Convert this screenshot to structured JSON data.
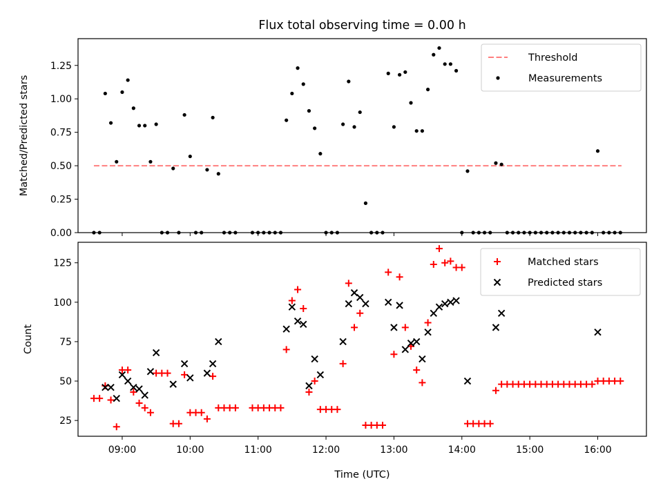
{
  "figure_title": "Flux total observing time = 0.00 h",
  "chart_data": [
    {
      "type": "scatter",
      "title": "Flux total observing time = 0.00 h",
      "xlabel": "",
      "ylabel": "Matched/Predicted stars",
      "xlim": [
        "08:21",
        "16:43"
      ],
      "ylim": [
        0,
        1.45
      ],
      "grid": false,
      "legend_position": "top-right",
      "y_ticks": [
        0,
        0.25,
        0.5,
        0.75,
        1.0,
        1.25
      ],
      "y_tick_labels": [
        "0.00",
        "0.25",
        "0.50",
        "0.75",
        "1.00",
        "1.25"
      ],
      "x_ticks": [
        "09:00",
        "10:00",
        "11:00",
        "12:00",
        "13:00",
        "14:00",
        "15:00",
        "16:00"
      ],
      "series": [
        {
          "name": "Threshold",
          "kind": "line",
          "style": "dashed",
          "color": "#ff7f7f",
          "points": [
            [
              "08:35",
              0.5
            ],
            [
              "16:21",
              0.5
            ]
          ]
        },
        {
          "name": "Measurements",
          "kind": "scatter",
          "marker": "dot",
          "color": "#000000",
          "points": [
            [
              "08:35",
              0.0
            ],
            [
              "08:40",
              0.0
            ],
            [
              "08:45",
              1.04
            ],
            [
              "08:50",
              0.82
            ],
            [
              "08:55",
              0.53
            ],
            [
              "09:00",
              1.05
            ],
            [
              "09:05",
              1.14
            ],
            [
              "09:10",
              0.93
            ],
            [
              "09:15",
              0.8
            ],
            [
              "09:20",
              0.8
            ],
            [
              "09:25",
              0.53
            ],
            [
              "09:30",
              0.81
            ],
            [
              "09:35",
              0.0
            ],
            [
              "09:40",
              0.0
            ],
            [
              "09:45",
              0.48
            ],
            [
              "09:50",
              0.0
            ],
            [
              "09:55",
              0.88
            ],
            [
              "10:00",
              0.57
            ],
            [
              "10:05",
              0.0
            ],
            [
              "10:10",
              0.0
            ],
            [
              "10:15",
              0.47
            ],
            [
              "10:20",
              0.86
            ],
            [
              "10:25",
              0.44
            ],
            [
              "10:30",
              0.0
            ],
            [
              "10:35",
              0.0
            ],
            [
              "10:40",
              0.0
            ],
            [
              "10:55",
              0.0
            ],
            [
              "11:00",
              0.0
            ],
            [
              "11:05",
              0.0
            ],
            [
              "11:10",
              0.0
            ],
            [
              "11:15",
              0.0
            ],
            [
              "11:20",
              0.0
            ],
            [
              "11:25",
              0.84
            ],
            [
              "11:30",
              1.04
            ],
            [
              "11:35",
              1.23
            ],
            [
              "11:40",
              1.11
            ],
            [
              "11:45",
              0.91
            ],
            [
              "11:50",
              0.78
            ],
            [
              "11:55",
              0.59
            ],
            [
              "12:00",
              0.0
            ],
            [
              "12:05",
              0.0
            ],
            [
              "12:10",
              0.0
            ],
            [
              "12:15",
              0.81
            ],
            [
              "12:20",
              1.13
            ],
            [
              "12:25",
              0.79
            ],
            [
              "12:30",
              0.9
            ],
            [
              "12:35",
              0.22
            ],
            [
              "12:40",
              0.0
            ],
            [
              "12:45",
              0.0
            ],
            [
              "12:50",
              0.0
            ],
            [
              "12:55",
              1.19
            ],
            [
              "13:00",
              0.79
            ],
            [
              "13:05",
              1.18
            ],
            [
              "13:10",
              1.2
            ],
            [
              "13:15",
              0.97
            ],
            [
              "13:20",
              0.76
            ],
            [
              "13:25",
              0.76
            ],
            [
              "13:30",
              1.07
            ],
            [
              "13:35",
              1.33
            ],
            [
              "13:40",
              1.38
            ],
            [
              "13:45",
              1.26
            ],
            [
              "13:50",
              1.26
            ],
            [
              "13:55",
              1.21
            ],
            [
              "14:00",
              0.0
            ],
            [
              "14:05",
              0.46
            ],
            [
              "14:10",
              0.0
            ],
            [
              "14:15",
              0.0
            ],
            [
              "14:20",
              0.0
            ],
            [
              "14:25",
              0.0
            ],
            [
              "14:30",
              0.52
            ],
            [
              "14:35",
              0.51
            ],
            [
              "14:40",
              0.0
            ],
            [
              "14:45",
              0.0
            ],
            [
              "14:50",
              0.0
            ],
            [
              "14:55",
              0.0
            ],
            [
              "15:00",
              0.0
            ],
            [
              "15:05",
              0.0
            ],
            [
              "15:10",
              0.0
            ],
            [
              "15:15",
              0.0
            ],
            [
              "15:20",
              0.0
            ],
            [
              "15:25",
              0.0
            ],
            [
              "15:30",
              0.0
            ],
            [
              "15:35",
              0.0
            ],
            [
              "15:40",
              0.0
            ],
            [
              "15:45",
              0.0
            ],
            [
              "15:50",
              0.0
            ],
            [
              "15:55",
              0.0
            ],
            [
              "16:00",
              0.61
            ],
            [
              "16:05",
              0.0
            ],
            [
              "16:10",
              0.0
            ],
            [
              "16:15",
              0.0
            ],
            [
              "16:20",
              0.0
            ]
          ]
        }
      ]
    },
    {
      "type": "scatter",
      "title": "",
      "xlabel": "Time (UTC)",
      "ylabel": "Count",
      "xlim": [
        "08:21",
        "16:43"
      ],
      "ylim": [
        15,
        138
      ],
      "grid": false,
      "legend_position": "top-right",
      "y_ticks": [
        25,
        50,
        75,
        100,
        125
      ],
      "y_tick_labels": [
        "25",
        "50",
        "75",
        "100",
        "125"
      ],
      "x_ticks": [
        "09:00",
        "10:00",
        "11:00",
        "12:00",
        "13:00",
        "14:00",
        "15:00",
        "16:00"
      ],
      "x_tick_labels": [
        "09:00",
        "10:00",
        "11:00",
        "12:00",
        "13:00",
        "14:00",
        "15:00",
        "16:00"
      ],
      "series": [
        {
          "name": "Matched stars",
          "kind": "scatter",
          "marker": "plus",
          "color": "#ff0000",
          "points": [
            [
              "08:35",
              39
            ],
            [
              "08:40",
              39
            ],
            [
              "08:45",
              47
            ],
            [
              "08:50",
              38
            ],
            [
              "08:55",
              21
            ],
            [
              "09:00",
              57
            ],
            [
              "09:05",
              57
            ],
            [
              "09:10",
              43
            ],
            [
              "09:15",
              36
            ],
            [
              "09:20",
              33
            ],
            [
              "09:25",
              30
            ],
            [
              "09:30",
              55
            ],
            [
              "09:35",
              55
            ],
            [
              "09:40",
              55
            ],
            [
              "09:45",
              23
            ],
            [
              "09:50",
              23
            ],
            [
              "09:55",
              54
            ],
            [
              "10:00",
              30
            ],
            [
              "10:05",
              30
            ],
            [
              "10:10",
              30
            ],
            [
              "10:15",
              26
            ],
            [
              "10:20",
              53
            ],
            [
              "10:25",
              33
            ],
            [
              "10:30",
              33
            ],
            [
              "10:35",
              33
            ],
            [
              "10:40",
              33
            ],
            [
              "10:55",
              33
            ],
            [
              "11:00",
              33
            ],
            [
              "11:05",
              33
            ],
            [
              "11:10",
              33
            ],
            [
              "11:15",
              33
            ],
            [
              "11:20",
              33
            ],
            [
              "11:25",
              70
            ],
            [
              "11:30",
              101
            ],
            [
              "11:35",
              108
            ],
            [
              "11:40",
              96
            ],
            [
              "11:45",
              43
            ],
            [
              "11:50",
              50
            ],
            [
              "11:55",
              32
            ],
            [
              "12:00",
              32
            ],
            [
              "12:05",
              32
            ],
            [
              "12:10",
              32
            ],
            [
              "12:15",
              61
            ],
            [
              "12:20",
              112
            ],
            [
              "12:25",
              84
            ],
            [
              "12:30",
              93
            ],
            [
              "12:35",
              22
            ],
            [
              "12:40",
              22
            ],
            [
              "12:45",
              22
            ],
            [
              "12:50",
              22
            ],
            [
              "12:55",
              119
            ],
            [
              "13:00",
              67
            ],
            [
              "13:05",
              116
            ],
            [
              "13:10",
              84
            ],
            [
              "13:15",
              72
            ],
            [
              "13:20",
              57
            ],
            [
              "13:25",
              49
            ],
            [
              "13:30",
              87
            ],
            [
              "13:35",
              124
            ],
            [
              "13:40",
              134
            ],
            [
              "13:45",
              125
            ],
            [
              "13:50",
              126
            ],
            [
              "13:55",
              122
            ],
            [
              "14:00",
              122
            ],
            [
              "14:05",
              23
            ],
            [
              "14:10",
              23
            ],
            [
              "14:15",
              23
            ],
            [
              "14:20",
              23
            ],
            [
              "14:25",
              23
            ],
            [
              "14:30",
              44
            ],
            [
              "14:35",
              48
            ],
            [
              "14:40",
              48
            ],
            [
              "14:45",
              48
            ],
            [
              "14:50",
              48
            ],
            [
              "14:55",
              48
            ],
            [
              "15:00",
              48
            ],
            [
              "15:05",
              48
            ],
            [
              "15:10",
              48
            ],
            [
              "15:15",
              48
            ],
            [
              "15:20",
              48
            ],
            [
              "15:25",
              48
            ],
            [
              "15:30",
              48
            ],
            [
              "15:35",
              48
            ],
            [
              "15:40",
              48
            ],
            [
              "15:45",
              48
            ],
            [
              "15:50",
              48
            ],
            [
              "15:55",
              48
            ],
            [
              "16:00",
              50
            ],
            [
              "16:05",
              50
            ],
            [
              "16:10",
              50
            ],
            [
              "16:15",
              50
            ],
            [
              "16:20",
              50
            ]
          ]
        },
        {
          "name": "Predicted stars",
          "kind": "scatter",
          "marker": "x",
          "color": "#000000",
          "points": [
            [
              "08:45",
              46
            ],
            [
              "08:50",
              46
            ],
            [
              "08:55",
              39
            ],
            [
              "09:00",
              54
            ],
            [
              "09:05",
              50
            ],
            [
              "09:10",
              46
            ],
            [
              "09:15",
              45
            ],
            [
              "09:20",
              41
            ],
            [
              "09:25",
              56
            ],
            [
              "09:30",
              68
            ],
            [
              "09:45",
              48
            ],
            [
              "09:55",
              61
            ],
            [
              "10:00",
              52
            ],
            [
              "10:15",
              55
            ],
            [
              "10:20",
              61
            ],
            [
              "10:25",
              75
            ],
            [
              "11:25",
              83
            ],
            [
              "11:30",
              97
            ],
            [
              "11:35",
              88
            ],
            [
              "11:40",
              86
            ],
            [
              "11:45",
              47
            ],
            [
              "11:50",
              64
            ],
            [
              "11:55",
              54
            ],
            [
              "12:15",
              75
            ],
            [
              "12:20",
              99
            ],
            [
              "12:25",
              106
            ],
            [
              "12:30",
              103
            ],
            [
              "12:35",
              99
            ],
            [
              "12:55",
              100
            ],
            [
              "13:00",
              84
            ],
            [
              "13:05",
              98
            ],
            [
              "13:10",
              70
            ],
            [
              "13:15",
              74
            ],
            [
              "13:20",
              75
            ],
            [
              "13:25",
              64
            ],
            [
              "13:30",
              81
            ],
            [
              "13:35",
              93
            ],
            [
              "13:40",
              97
            ],
            [
              "13:45",
              99
            ],
            [
              "13:50",
              100
            ],
            [
              "13:55",
              101
            ],
            [
              "14:05",
              50
            ],
            [
              "14:30",
              84
            ],
            [
              "14:35",
              93
            ],
            [
              "16:00",
              81
            ]
          ]
        }
      ]
    }
  ]
}
